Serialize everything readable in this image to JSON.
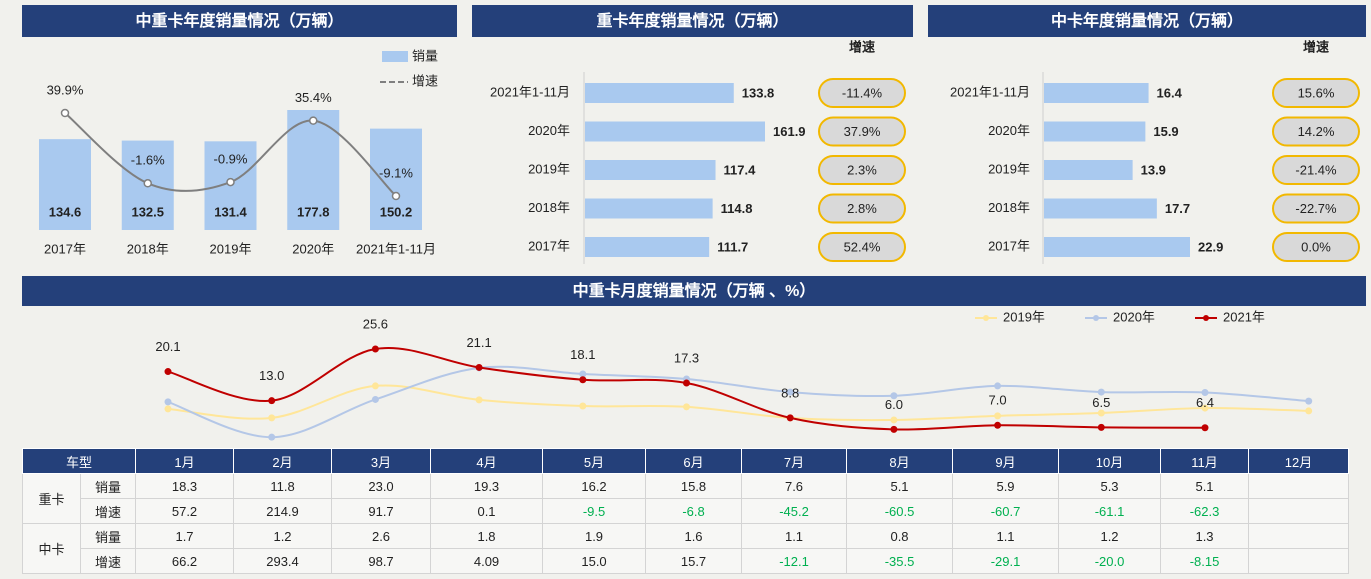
{
  "chart_data": [
    {
      "type": "combo",
      "title": "中重卡年度销量情况（万辆）",
      "categories": [
        "2017年",
        "2018年",
        "2019年",
        "2020年",
        "2021年1-11月"
      ],
      "legend": "top-right",
      "series": [
        {
          "name": "销量",
          "type": "bar",
          "color": "#a9c9ef",
          "values": [
            134.6,
            132.5,
            131.4,
            177.8,
            150.2
          ]
        },
        {
          "name": "增速",
          "type": "line",
          "color": "#7f7f7f",
          "values": [
            39.9,
            -1.6,
            -0.9,
            35.4,
            -9.1
          ],
          "value_labels": [
            "39.9%",
            "-1.6%",
            "-0.9%",
            "35.4%",
            "-9.1%"
          ]
        }
      ]
    },
    {
      "type": "hbar",
      "title": "重卡年度销量情况（万辆）",
      "categories": [
        "2021年1-11月",
        "2020年",
        "2019年",
        "2018年",
        "2017年"
      ],
      "values": [
        133.8,
        161.9,
        117.4,
        114.8,
        111.7
      ],
      "color": "#a9c9ef",
      "rate_title": "增速",
      "rates": [
        -11.4,
        37.9,
        2.3,
        2.8,
        52.4
      ],
      "rate_labels": [
        "-11.4%",
        "37.9%",
        "2.3%",
        "2.8%",
        "52.4%"
      ]
    },
    {
      "type": "hbar",
      "title": "中卡年度销量情况（万辆）",
      "categories": [
        "2021年1-11月",
        "2020年",
        "2019年",
        "2018年",
        "2017年"
      ],
      "values": [
        16.4,
        15.9,
        13.9,
        17.7,
        22.9
      ],
      "color": "#a9c9ef",
      "rate_title": "增速",
      "rates": [
        15.6,
        14.2,
        -21.4,
        -22.7,
        0.0
      ],
      "rate_labels": [
        "15.6%",
        "14.2%",
        "-21.4%",
        "-22.7%",
        "0.0%"
      ]
    },
    {
      "type": "line",
      "title": "中重卡月度销量情况（万辆 、%）",
      "legend": "top-right",
      "series": [
        {
          "name": "2019年",
          "color": "#ffe699",
          "values": [
            11.0,
            8.8,
            16.6,
            13.2,
            11.7,
            11.5,
            8.8,
            8.3,
            9.3,
            10.0,
            11.2,
            10.5
          ]
        },
        {
          "name": "2020年",
          "color": "#b4c7e7",
          "values": [
            12.7,
            4.1,
            13.3,
            21.0,
            19.5,
            18.3,
            15.1,
            14.2,
            16.6,
            15.1,
            15.0,
            12.9
          ]
        },
        {
          "name": "2021年",
          "color": "#c00000",
          "values": [
            20.1,
            13.0,
            25.6,
            21.1,
            18.1,
            17.3,
            8.8,
            6.0,
            7.0,
            6.5,
            6.4,
            null
          ],
          "value_labels": [
            "20.1",
            "13.0",
            "25.6",
            "21.1",
            "18.1",
            "17.3",
            "8.8",
            "6.0",
            "7.0",
            "6.5",
            "6.4",
            null
          ]
        }
      ]
    }
  ],
  "table": {
    "header": [
      "车型",
      "1月",
      "2月",
      "3月",
      "4月",
      "5月",
      "6月",
      "7月",
      "8月",
      "9月",
      "10月",
      "11月",
      "12月"
    ],
    "groups": [
      {
        "name": "重卡",
        "rows": [
          {
            "label": "销量",
            "cells": [
              "18.3",
              "11.8",
              "23.0",
              "19.3",
              "16.2",
              "15.8",
              "7.6",
              "5.1",
              "5.9",
              "5.3",
              "5.1"
            ]
          },
          {
            "label": "增速",
            "cells": [
              "57.2",
              "214.9",
              "91.7",
              "0.1",
              "-9.5",
              "-6.8",
              "-45.2",
              "-60.5",
              "-60.7",
              "-61.1",
              "-62.3"
            ]
          }
        ]
      },
      {
        "name": "中卡",
        "rows": [
          {
            "label": "销量",
            "cells": [
              "1.7",
              "1.2",
              "2.6",
              "1.8",
              "1.9",
              "1.6",
              "1.1",
              "0.8",
              "1.1",
              "1.2",
              "1.3"
            ]
          },
          {
            "label": "增速",
            "cells": [
              "66.2",
              "293.4",
              "98.7",
              "4.09",
              "15.0",
              "15.7",
              "-12.1",
              "-35.5",
              "-29.1",
              "-20.0",
              "-8.15"
            ]
          }
        ]
      }
    ]
  }
}
